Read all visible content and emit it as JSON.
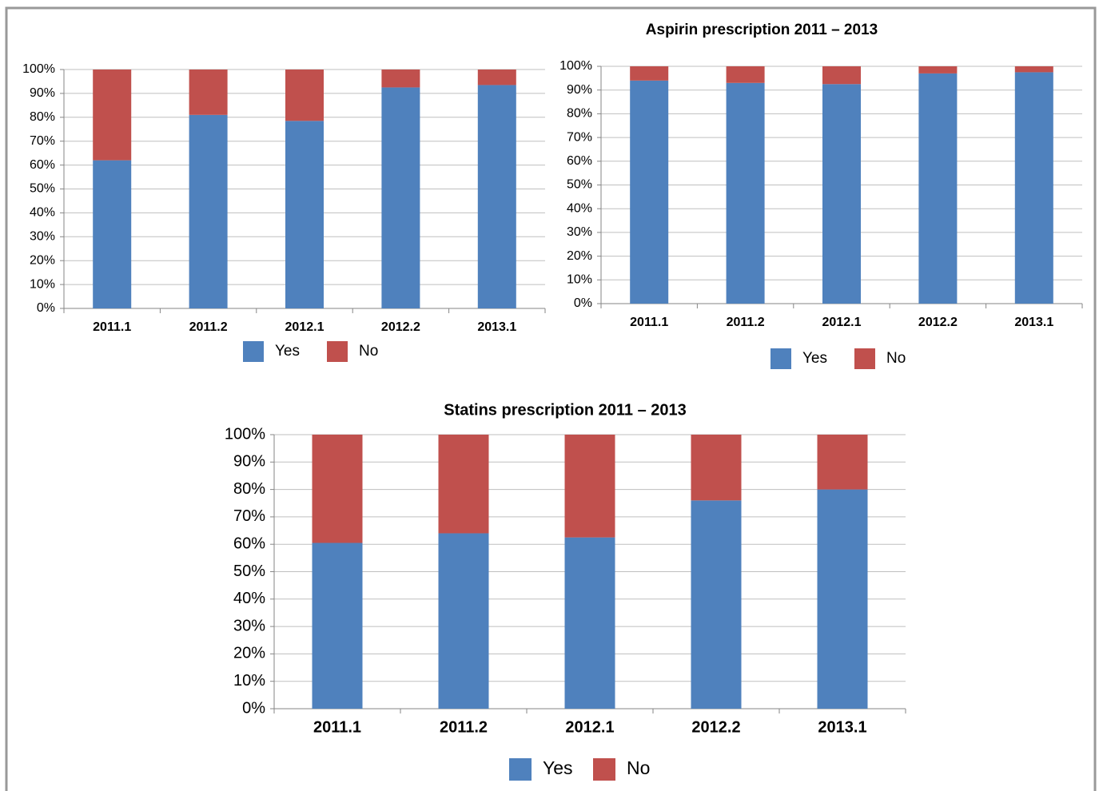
{
  "chart_data": [
    {
      "type": "bar",
      "stacked": true,
      "categories": [
        "2011.1",
        "2011.2",
        "2012.1",
        "2012.2",
        "2013.1"
      ],
      "series": [
        {
          "name": "Yes",
          "color": "#4f81bd",
          "values": [
            62,
            81,
            78.5,
            92.5,
            93.5
          ]
        },
        {
          "name": "No",
          "color": "#c0504d",
          "values": [
            38,
            19,
            21.5,
            7.5,
            6.5
          ]
        }
      ],
      "ylim": [
        0,
        100
      ],
      "yticks": [
        {
          "value": 0,
          "label": "0%"
        },
        {
          "value": 10,
          "label": "10%"
        },
        {
          "value": 20,
          "label": "20%"
        },
        {
          "value": 30,
          "label": "30%"
        },
        {
          "value": 40,
          "label": "40%"
        },
        {
          "value": 50,
          "label": "50%"
        },
        {
          "value": 60,
          "label": "60%"
        },
        {
          "value": 70,
          "label": "70%"
        },
        {
          "value": 80,
          "label": "80%"
        },
        {
          "value": 90,
          "label": "90%"
        },
        {
          "value": 100,
          "label": "100%"
        }
      ],
      "grid": true,
      "legend": "bottom"
    },
    {
      "type": "bar",
      "stacked": true,
      "title": "Aspirin prescription 2011 – 2013",
      "categories": [
        "2011.1",
        "2011.2",
        "2012.1",
        "2012.2",
        "2013.1"
      ],
      "series": [
        {
          "name": "Yes",
          "color": "#4f81bd",
          "values": [
            94,
            93,
            92.5,
            97,
            97.5
          ]
        },
        {
          "name": "No",
          "color": "#c0504d",
          "values": [
            6,
            7,
            7.5,
            3,
            2.5
          ]
        }
      ],
      "ylim": [
        0,
        100
      ],
      "yticks": [
        {
          "value": 0,
          "label": "0%"
        },
        {
          "value": 10,
          "label": "10%"
        },
        {
          "value": 20,
          "label": "20%"
        },
        {
          "value": 30,
          "label": "30%"
        },
        {
          "value": 40,
          "label": "40%"
        },
        {
          "value": 50,
          "label": "50%"
        },
        {
          "value": 60,
          "label": "60%"
        },
        {
          "value": 70,
          "label": "70%"
        },
        {
          "value": 80,
          "label": "80%"
        },
        {
          "value": 90,
          "label": "90%"
        },
        {
          "value": 100,
          "label": "100%"
        }
      ],
      "grid": true,
      "legend": "bottom"
    },
    {
      "type": "bar",
      "stacked": true,
      "title": "Statins prescription 2011 – 2013",
      "categories": [
        "2011.1",
        "2011.2",
        "2012.1",
        "2012.2",
        "2013.1"
      ],
      "series": [
        {
          "name": "Yes",
          "color": "#4f81bd",
          "values": [
            60.5,
            64,
            62.5,
            76,
            80
          ]
        },
        {
          "name": "No",
          "color": "#c0504d",
          "values": [
            39.5,
            36,
            37.5,
            24,
            20
          ]
        }
      ],
      "ylim": [
        0,
        100
      ],
      "yticks": [
        {
          "value": 0,
          "label": "0%"
        },
        {
          "value": 10,
          "label": "10%"
        },
        {
          "value": 20,
          "label": "20%"
        },
        {
          "value": 30,
          "label": "30%"
        },
        {
          "value": 40,
          "label": "40%"
        },
        {
          "value": 50,
          "label": "50%"
        },
        {
          "value": 60,
          "label": "60%"
        },
        {
          "value": 70,
          "label": "70%"
        },
        {
          "value": 80,
          "label": "80%"
        },
        {
          "value": 90,
          "label": "90%"
        },
        {
          "value": 100,
          "label": "100%"
        }
      ],
      "grid": true,
      "legend": "bottom"
    }
  ]
}
